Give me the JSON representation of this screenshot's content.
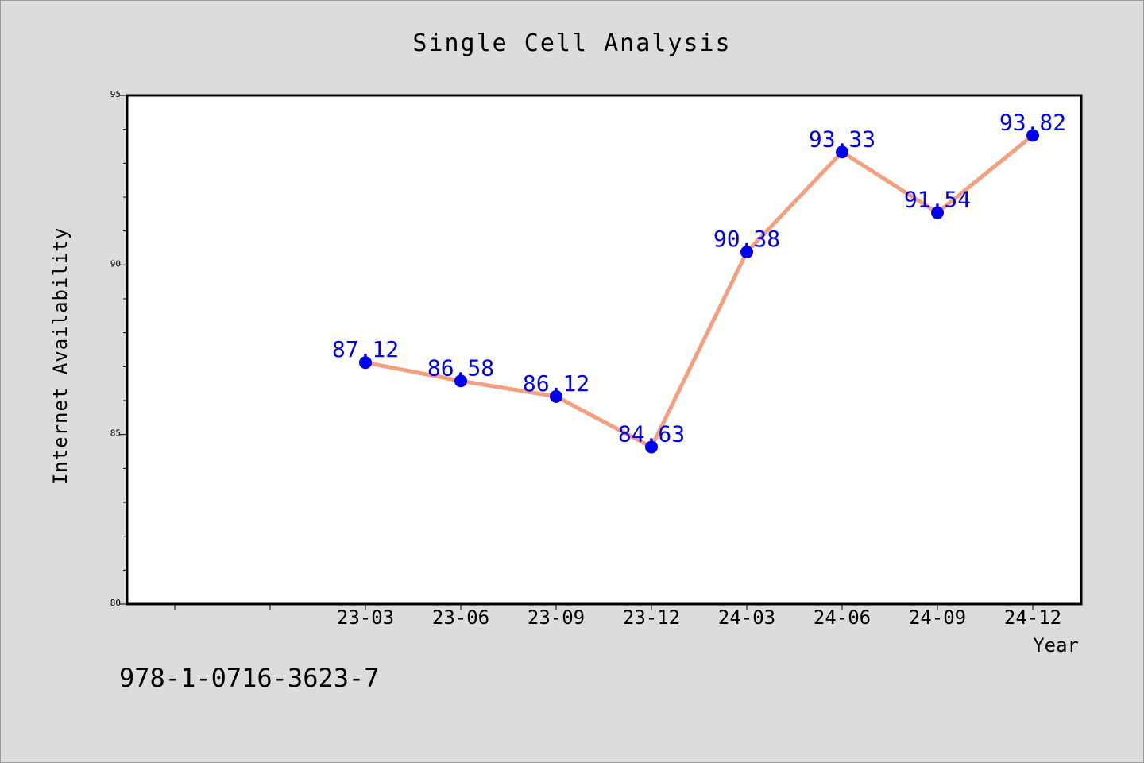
{
  "chart_data": {
    "type": "line",
    "title": "Single Cell Analysis",
    "xlabel": "Year",
    "ylabel": "Internet Availability",
    "categories": [
      "23-03",
      "23-06",
      "23-09",
      "23-12",
      "24-03",
      "24-06",
      "24-09",
      "24-12"
    ],
    "values": [
      87.12,
      86.58,
      86.12,
      84.63,
      90.38,
      93.33,
      91.54,
      93.82
    ],
    "data_labels": [
      "87.12",
      "86.58",
      "86.12",
      "84.63",
      "90.38",
      "93.33",
      "91.54",
      "93.82"
    ],
    "ylim": [
      80,
      95
    ],
    "yticks": [
      "80",
      "85",
      "90",
      "95"
    ],
    "grid": false,
    "line_color": "#f4a07f",
    "marker_color": "#0000ee",
    "label_color": "#0000ee"
  },
  "annotation": "978-1-0716-3623-7"
}
